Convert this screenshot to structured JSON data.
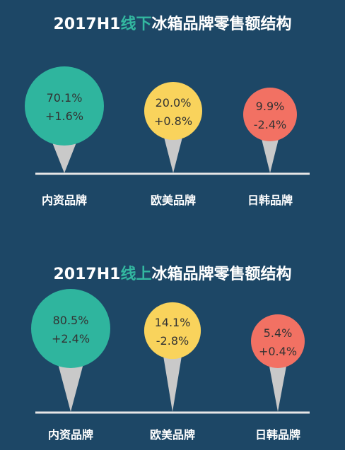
{
  "chart_data": [
    {
      "type": "pin",
      "title_parts": [
        "2017H1",
        "线下",
        "冰箱品牌零售额结构"
      ],
      "categories": [
        "内资品牌",
        "欧美品牌",
        "日韩品牌"
      ],
      "share": [
        "70.1%",
        "20.0%",
        "9.9%"
      ],
      "change": [
        "+1.6%",
        "+0.8%",
        "-2.4%"
      ],
      "values": [
        70.1,
        20.0,
        9.9
      ],
      "changes": [
        1.6,
        0.8,
        -2.4
      ]
    },
    {
      "type": "pin",
      "title_parts": [
        "2017H1",
        "线上",
        "冰箱品牌零售额结构"
      ],
      "categories": [
        "内资品牌",
        "欧美品牌",
        "日韩品牌"
      ],
      "share": [
        "80.5%",
        "14.1%",
        "5.4%"
      ],
      "change": [
        "+2.4%",
        "-2.8%",
        "+0.4%"
      ],
      "values": [
        80.5,
        14.1,
        5.4
      ],
      "changes": [
        2.4,
        -2.8,
        0.4
      ]
    }
  ],
  "colors": {
    "background": "#1d4766",
    "title_highlight": "#33b8a0",
    "series": [
      "#2fb59e",
      "#f9d35c",
      "#f27163"
    ],
    "pin": "#c9c9c9",
    "baseline": "#e6e6e6"
  }
}
